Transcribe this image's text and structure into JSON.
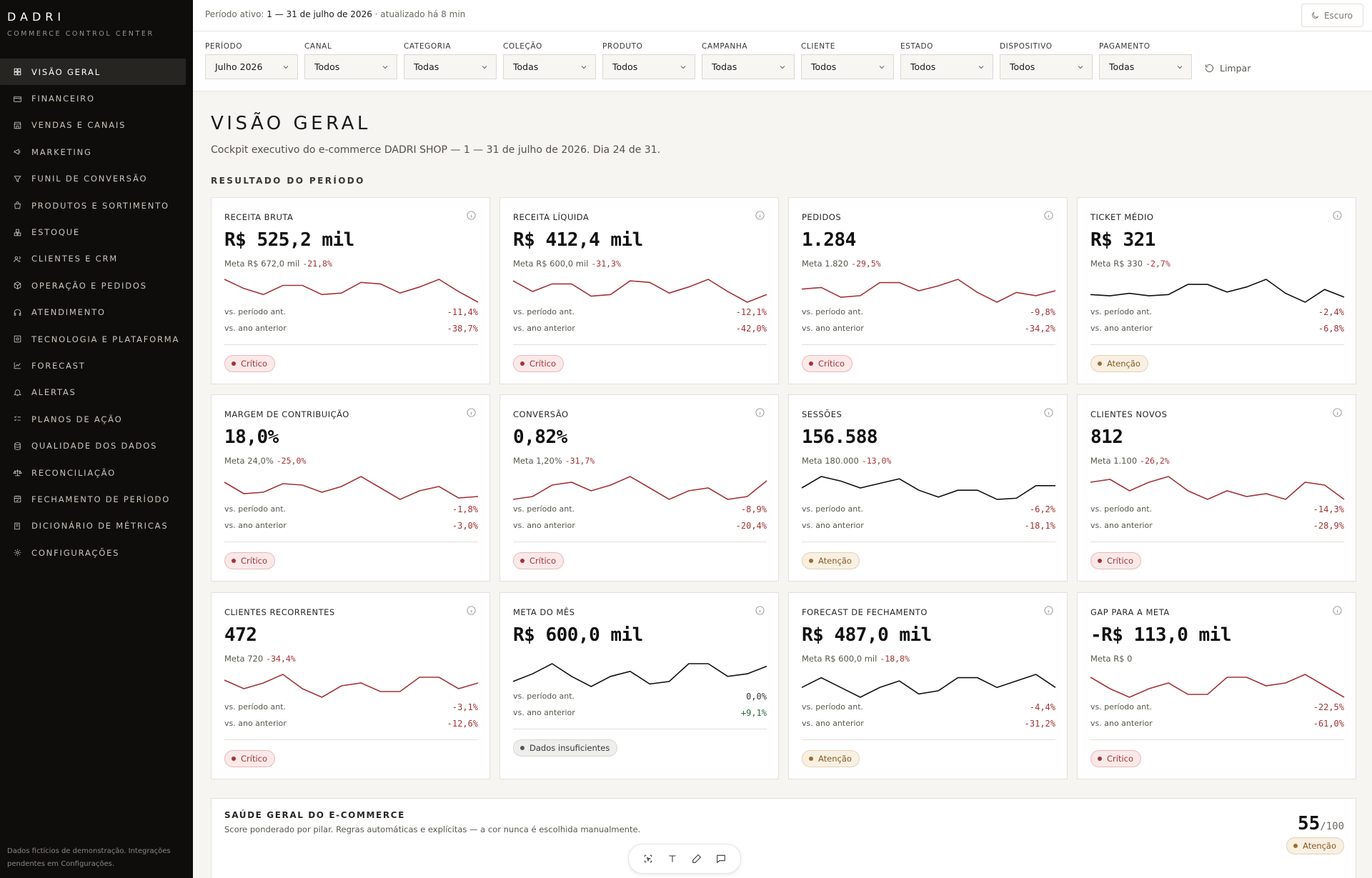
{
  "brand": {
    "name": "DADRI",
    "subtitle": "COMMERCE CONTROL CENTER"
  },
  "sidebar": {
    "items": [
      {
        "label": "VISÃO GERAL",
        "icon": "grid-icon",
        "active": true
      },
      {
        "label": "FINANCEIRO",
        "icon": "wallet-icon"
      },
      {
        "label": "VENDAS E CANAIS",
        "icon": "store-icon"
      },
      {
        "label": "MARKETING",
        "icon": "megaphone-icon"
      },
      {
        "label": "FUNIL DE CONVERSÃO",
        "icon": "funnel-icon"
      },
      {
        "label": "PRODUTOS E SORTIMENTO",
        "icon": "bag-icon"
      },
      {
        "label": "ESTOQUE",
        "icon": "boxes-icon"
      },
      {
        "label": "CLIENTES E CRM",
        "icon": "users-icon"
      },
      {
        "label": "OPERAÇÃO E PEDIDOS",
        "icon": "package-icon"
      },
      {
        "label": "ATENDIMENTO",
        "icon": "headset-icon"
      },
      {
        "label": "TECNOLOGIA E PLATAFORMA",
        "icon": "server-icon"
      },
      {
        "label": "FORECAST",
        "icon": "chart-line-icon"
      },
      {
        "label": "ALERTAS",
        "icon": "bell-icon"
      },
      {
        "label": "PLANOS DE AÇÃO",
        "icon": "list-checks-icon"
      },
      {
        "label": "QUALIDADE DOS DADOS",
        "icon": "database-icon"
      },
      {
        "label": "RECONCILIAÇÃO",
        "icon": "scale-icon"
      },
      {
        "label": "FECHAMENTO DE PERÍODO",
        "icon": "calendar-check-icon"
      },
      {
        "label": "DICIONÁRIO DE MÉTRICAS",
        "icon": "book-icon"
      },
      {
        "label": "CONFIGURAÇÕES",
        "icon": "gear-icon"
      }
    ],
    "footer": "Dados fictícios de demonstração. Integrações pendentes em Configurações."
  },
  "topbar": {
    "period_prefix": "Período ativo:",
    "period_value": "1 — 31 de julho de 2026",
    "updated": "· atualizado há 8 min",
    "theme_label": "Escuro"
  },
  "filters": [
    {
      "label": "PERÍODO",
      "value": "Julho 2026"
    },
    {
      "label": "CANAL",
      "value": "Todos"
    },
    {
      "label": "CATEGORIA",
      "value": "Todas"
    },
    {
      "label": "COLEÇÃO",
      "value": "Todas"
    },
    {
      "label": "PRODUTO",
      "value": "Todos"
    },
    {
      "label": "CAMPANHA",
      "value": "Todas"
    },
    {
      "label": "CLIENTE",
      "value": "Todos"
    },
    {
      "label": "ESTADO",
      "value": "Todos"
    },
    {
      "label": "DISPOSITIVO",
      "value": "Todos"
    },
    {
      "label": "PAGAMENTO",
      "value": "Todas"
    }
  ],
  "clear_label": "Limpar",
  "page": {
    "title": "VISÃO GERAL",
    "subtitle": "Cockpit executivo do e-commerce DADRI SHOP — 1 — 31 de julho de 2026. Dia 24 de 31.",
    "section": "RESULTADO DO PERÍODO"
  },
  "colors": {
    "negative": "#a3333a",
    "positive": "#2f6b45",
    "neutral_line": "#111111"
  },
  "kpis": [
    {
      "label": "RECEITA BRUTA",
      "value": "R$ 525,2 mil",
      "meta": "Meta R$ 672,0 mil",
      "delta": "-21,8%",
      "prev_label": "vs. período ant.",
      "prev": "-11,4%",
      "yoy_label": "vs. ano anterior",
      "yoy": "-38,7%",
      "status": "Crítico",
      "line": "neg",
      "spark": [
        20,
        14,
        10,
        16,
        16,
        10,
        11,
        18,
        17,
        11,
        15,
        20,
        12,
        5
      ]
    },
    {
      "label": "RECEITA LÍQUIDA",
      "value": "R$ 412,4 mil",
      "meta": "Meta R$ 600,0 mil",
      "delta": "-31,3%",
      "prev_label": "vs. período ant.",
      "prev": "-12,1%",
      "yoy_label": "vs. ano anterior",
      "yoy": "-42,0%",
      "status": "Crítico",
      "line": "neg",
      "spark": [
        20,
        13,
        18,
        18,
        10,
        11,
        20,
        19,
        12,
        16,
        21,
        13,
        6,
        11
      ]
    },
    {
      "label": "PEDIDOS",
      "value": "1.284",
      "meta": "Meta 1.820",
      "delta": "-29,5%",
      "prev_label": "vs. período ant.",
      "prev": "-9,8%",
      "yoy_label": "vs. ano anterior",
      "yoy": "-34,2%",
      "status": "Crítico",
      "line": "neg",
      "spark": [
        16,
        17,
        11,
        12,
        20,
        20,
        15,
        18,
        22,
        14,
        8,
        14,
        12,
        15
      ]
    },
    {
      "label": "TICKET MÉDIO",
      "value": "R$ 321",
      "meta": "Meta R$ 330",
      "delta": "-2,7%",
      "prev_label": "vs. período ant.",
      "prev": "-2,4%",
      "yoy_label": "vs. ano anterior",
      "yoy": "-6,8%",
      "status": "Atenção",
      "line": "neu",
      "spark": [
        12,
        11,
        13,
        11,
        12,
        20,
        20,
        14,
        18,
        24,
        13,
        6,
        16,
        10
      ]
    },
    {
      "label": "MARGEM DE CONTRIBUIÇÃO",
      "value": "18,0%",
      "meta": "Meta 24,0%",
      "delta": "-25,0%",
      "prev_label": "vs. período ant.",
      "prev": "-1,8%",
      "yoy_label": "vs. ano anterior",
      "yoy": "-3,0%",
      "status": "Crítico",
      "line": "neg",
      "spark": [
        18,
        10,
        11,
        17,
        16,
        11,
        15,
        22,
        14,
        6,
        12,
        15,
        7,
        8
      ]
    },
    {
      "label": "CONVERSÃO",
      "value": "0,82%",
      "meta": "Meta 1,20%",
      "delta": "-31,7%",
      "prev_label": "vs. período ant.",
      "prev": "-8,9%",
      "yoy_label": "vs. ano anterior",
      "yoy": "-20,4%",
      "status": "Crítico",
      "line": "neg",
      "spark": [
        8,
        10,
        18,
        20,
        14,
        18,
        24,
        16,
        8,
        14,
        16,
        8,
        10,
        21
      ]
    },
    {
      "label": "SESSÕES",
      "value": "156.588",
      "meta": "Meta 180.000",
      "delta": "-13,0%",
      "prev_label": "vs. período ant.",
      "prev": "-6,2%",
      "yoy_label": "vs. ano anterior",
      "yoy": "-18,1%",
      "status": "Atenção",
      "line": "neu",
      "spark": [
        14,
        24,
        20,
        14,
        18,
        22,
        12,
        6,
        12,
        12,
        4,
        5,
        16,
        16
      ]
    },
    {
      "label": "CLIENTES NOVOS",
      "value": "812",
      "meta": "Meta 1.100",
      "delta": "-26,2%",
      "prev_label": "vs. período ant.",
      "prev": "-14,3%",
      "yoy_label": "vs. ano anterior",
      "yoy": "-28,9%",
      "status": "Crítico",
      "line": "neg",
      "spark": [
        20,
        22,
        14,
        20,
        24,
        14,
        8,
        14,
        10,
        12,
        8,
        20,
        18,
        8
      ]
    },
    {
      "label": "CLIENTES RECORRENTES",
      "value": "472",
      "meta": "Meta 720",
      "delta": "-34,4%",
      "prev_label": "vs. período ant.",
      "prev": "-3,1%",
      "yoy_label": "vs. ano anterior",
      "yoy": "-12,6%",
      "status": "Crítico",
      "line": "neg",
      "spark": [
        16,
        10,
        14,
        20,
        10,
        4,
        12,
        14,
        8,
        8,
        18,
        18,
        10,
        14
      ]
    },
    {
      "label": "META DO MÊS",
      "value": "R$ 600,0 mil",
      "meta": "",
      "delta": "",
      "prev_label": "vs. período ant.",
      "prev": "0,0%",
      "yoy_label": "vs. ano anterior",
      "yoy": "+9,1%",
      "status": "Dados insuficientes",
      "line": "neu",
      "spark": [
        6,
        12,
        20,
        10,
        2,
        10,
        14,
        4,
        6,
        20,
        20,
        10,
        12,
        18
      ]
    },
    {
      "label": "FORECAST DE FECHAMENTO",
      "value": "R$ 487,0 mil",
      "meta": "Meta R$ 600,0 mil",
      "delta": "-18,8%",
      "prev_label": "vs. período ant.",
      "prev": "-4,4%",
      "yoy_label": "vs. ano anterior",
      "yoy": "-31,2%",
      "status": "Atenção",
      "line": "neu",
      "spark": [
        14,
        20,
        14,
        8,
        14,
        18,
        10,
        12,
        20,
        20,
        14,
        18,
        22,
        14
      ]
    },
    {
      "label": "GAP PARA A META",
      "value": "-R$ 113,0 mil",
      "meta": "Meta R$ 0",
      "delta": "",
      "prev_label": "vs. período ant.",
      "prev": "-22,5%",
      "yoy_label": "vs. ano anterior",
      "yoy": "-61,0%",
      "status": "Crítico",
      "line": "neg",
      "spark": [
        20,
        12,
        6,
        12,
        16,
        8,
        8,
        20,
        20,
        14,
        16,
        22,
        14,
        6
      ]
    }
  ],
  "status_styles": {
    "Crítico": {
      "bg": "#fbe9e9",
      "border": "#e9b8b8",
      "dot": "#a3333a",
      "text": "#a3333a"
    },
    "Atenção": {
      "bg": "#f8f0e3",
      "border": "#e4d2b2",
      "dot": "#a06a2b",
      "text": "#8a5a22"
    },
    "Dados insuficientes": {
      "bg": "#eeeeec",
      "border": "#d8d6d1",
      "dot": "#5a564f",
      "text": "#3a3733"
    }
  },
  "health": {
    "title": "SAÚDE GERAL DO E-COMMERCE",
    "subtitle": "Score ponderado por pilar. Regras automáticas e explícitas — a cor nunca é escolhida manualmente.",
    "score": "55",
    "score_max": "/100",
    "status": "Atenção"
  }
}
